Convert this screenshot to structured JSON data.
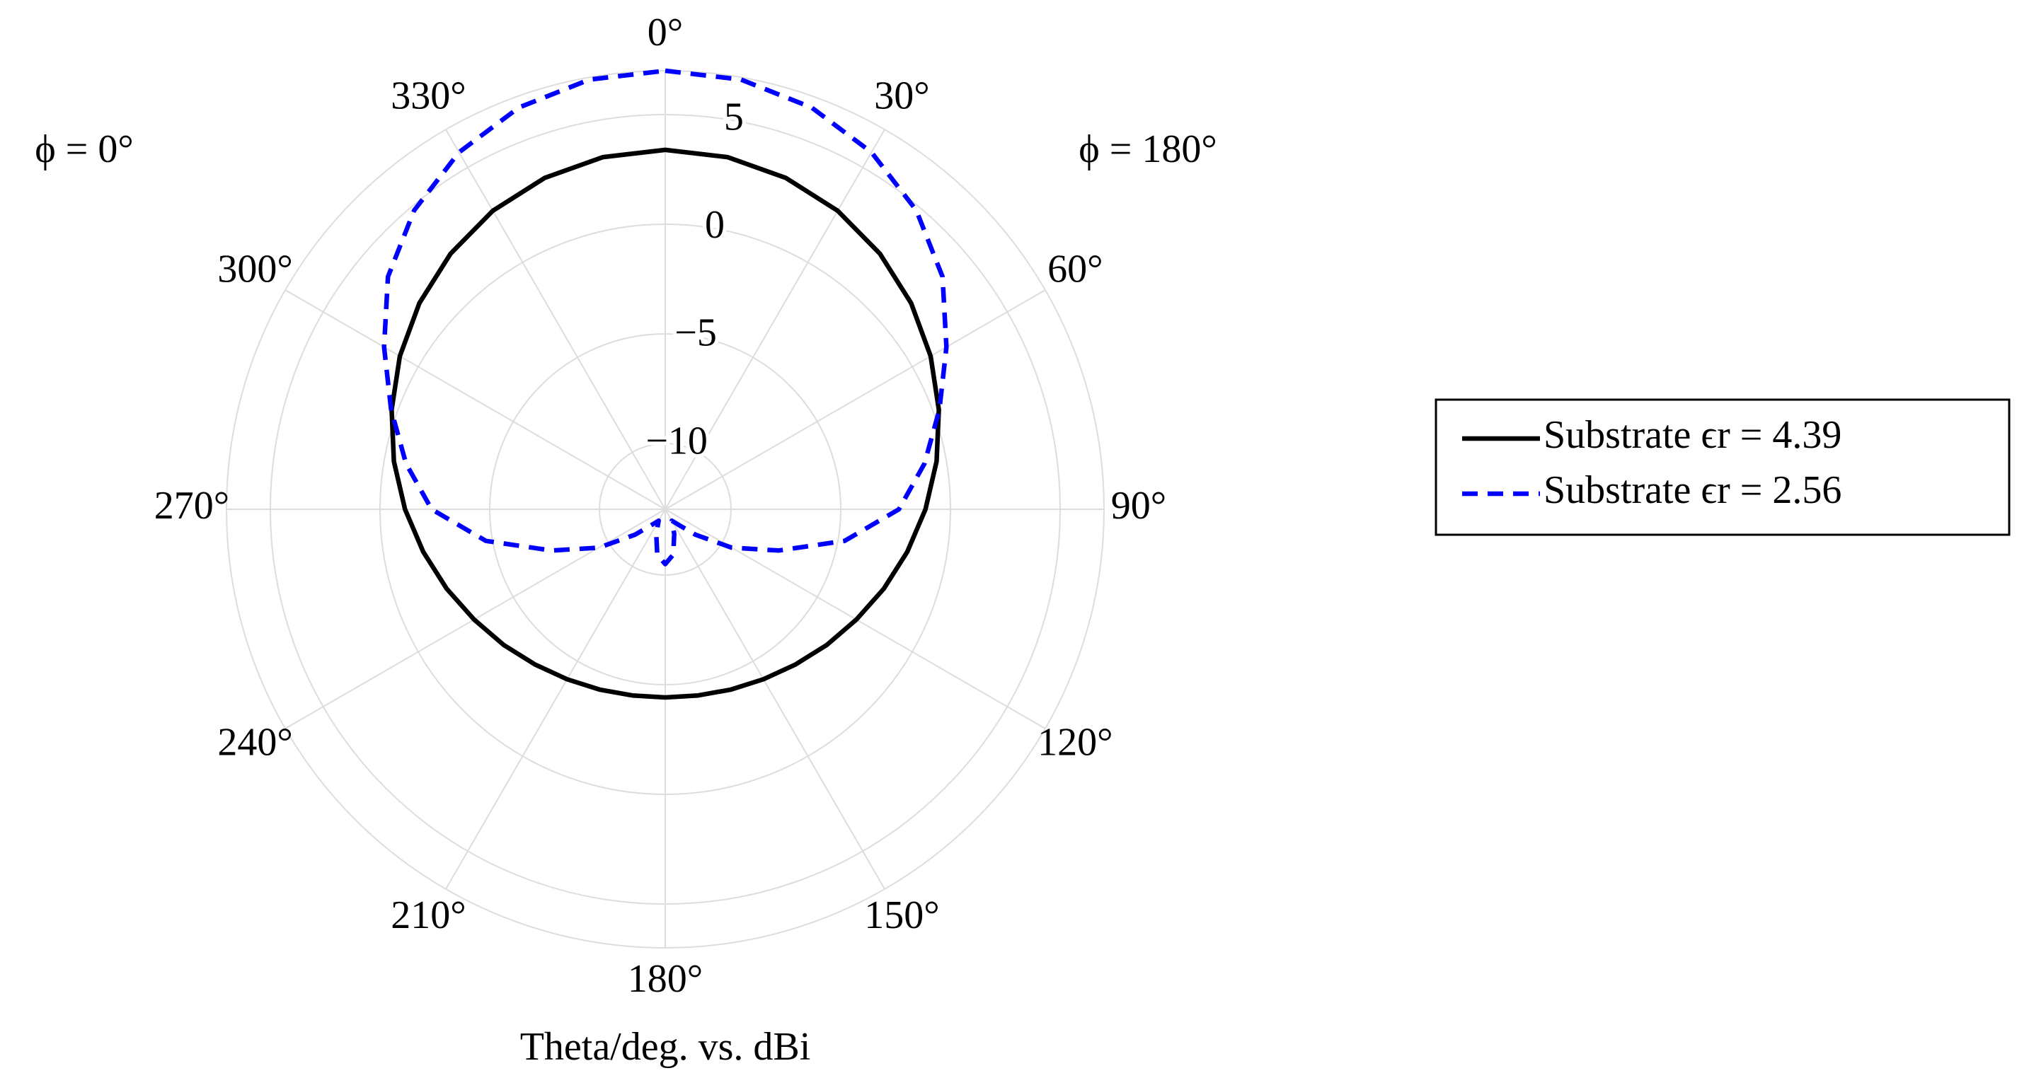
{
  "chart_data": {
    "type": "polar",
    "xlabel": "Theta/deg. vs. dBi",
    "annotations": [
      "ϕ = 0°",
      "ϕ = 180°"
    ],
    "theta": [
      0,
      10,
      20,
      30,
      40,
      50,
      60,
      70,
      80,
      90,
      100,
      110,
      120,
      130,
      140,
      150,
      160,
      170,
      180,
      190,
      200,
      210,
      220,
      230,
      240,
      250,
      260,
      270,
      280,
      290,
      300,
      310,
      320,
      330,
      340,
      350
    ],
    "series": [
      {
        "name": "Substrate ϵr = 4.39",
        "color": "#000000",
        "dash": false,
        "values": [
          3.39,
          3.31,
          3.08,
          2.72,
          2.22,
          1.63,
          0.97,
          0.27,
          -0.44,
          -1.14,
          -1.8,
          -2.4,
          -2.94,
          -3.38,
          -3.76,
          -4.05,
          -4.25,
          -4.38,
          -4.42,
          -4.38,
          -4.25,
          -4.05,
          -3.76,
          -3.38,
          -2.94,
          -2.4,
          -1.8,
          -1.14,
          -0.44,
          0.27,
          0.97,
          1.63,
          2.22,
          2.72,
          3.08,
          3.31
        ]
      },
      {
        "name": "Substrate ϵr = 2.56",
        "color": "#0000ff",
        "dash": true,
        "values": [
          7.0,
          6.9,
          6.5,
          5.8,
          4.8,
          3.5,
          1.8,
          0.3,
          -1.0,
          -2.35,
          -4.7,
          -7.5,
          -9.5,
          -11.2,
          -12.1,
          -12.4,
          -11.8,
          -10.9,
          -10.5,
          -10.9,
          -11.8,
          -12.4,
          -12.1,
          -11.2,
          -9.5,
          -7.5,
          -4.7,
          -2.35,
          -1.0,
          0.3,
          1.8,
          3.5,
          4.8,
          5.8,
          6.5,
          6.9
        ]
      }
    ],
    "rlim": [
      -13,
      7
    ],
    "rticks": [
      {
        "value": -10,
        "label": "−10"
      },
      {
        "value": -5,
        "label": "−5"
      },
      0,
      5
    ],
    "thetaticks": [
      {
        "value": 0,
        "label": "0°"
      },
      {
        "value": 30,
        "label": "30°"
      },
      {
        "value": 60,
        "label": "60°"
      },
      {
        "value": 90,
        "label": "90°"
      },
      {
        "value": 120,
        "label": "120°"
      },
      {
        "value": 150,
        "label": "150°"
      },
      {
        "value": 180,
        "label": "180°"
      },
      {
        "value": 210,
        "label": "210°"
      },
      {
        "value": 240,
        "label": "240°"
      },
      {
        "value": 270,
        "label": "270°"
      },
      {
        "value": 300,
        "label": "300°"
      },
      {
        "value": 330,
        "label": "330°"
      }
    ],
    "grid": true,
    "legend": "right"
  }
}
